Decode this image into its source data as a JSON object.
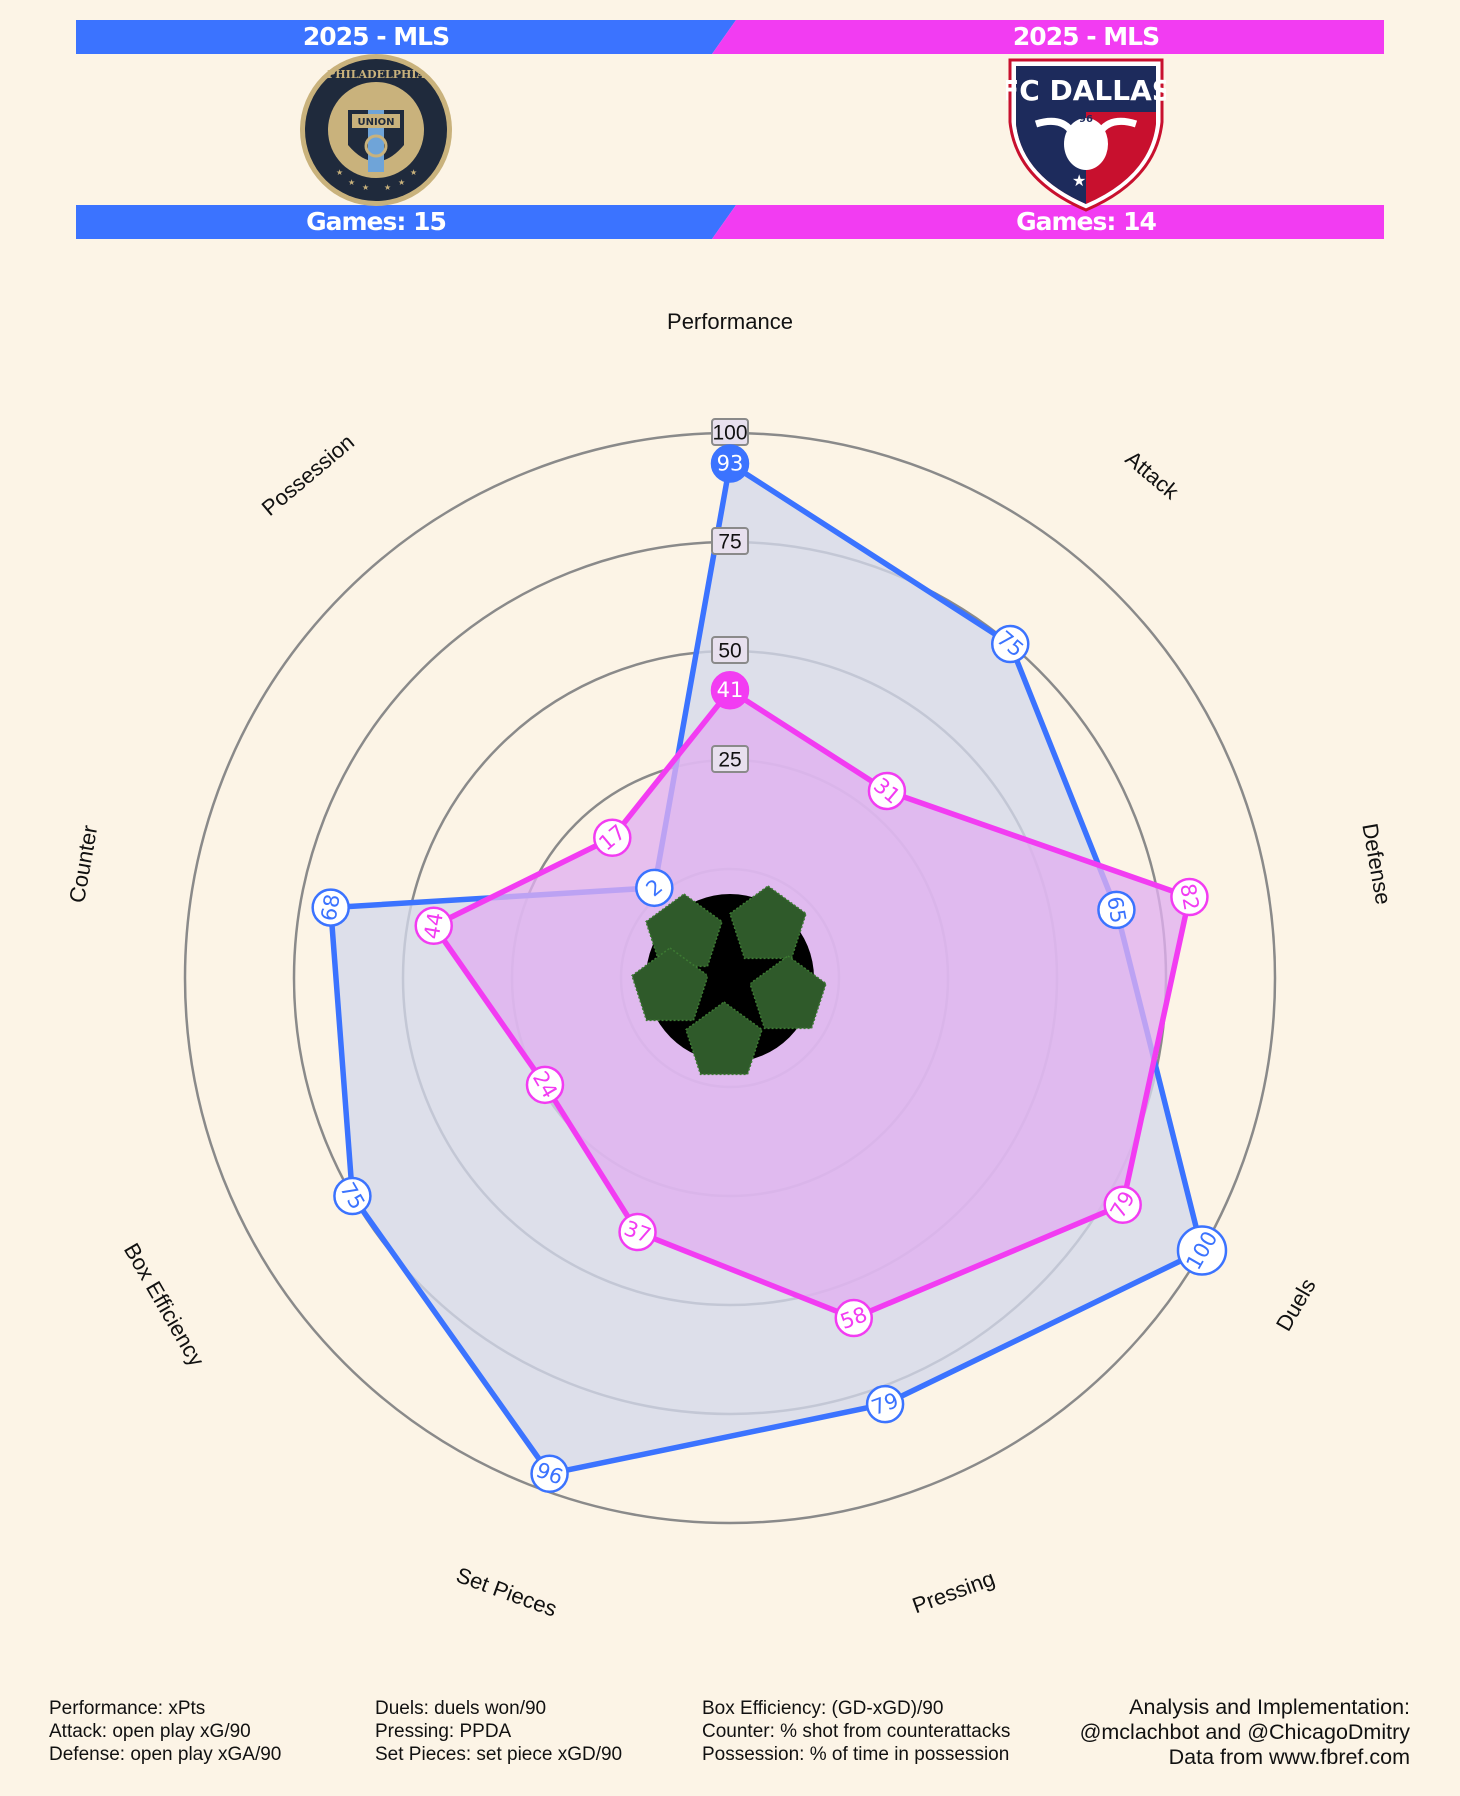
{
  "header": {
    "left": {
      "league": "2025 - MLS",
      "games": "Games: 15",
      "color": "#3b73ff",
      "logo_text_top": "PHILADELPHIA",
      "logo_text_mid": "UNION"
    },
    "right": {
      "league": "2025 - MLS",
      "games": "Games: 14",
      "color": "#f23cf2",
      "logo_text_top": "FC DALLAS",
      "logo_text_mid": "96"
    }
  },
  "chart_data": {
    "type": "radar",
    "axes": [
      "Performance",
      "Attack",
      "Defense",
      "Duels",
      "Pressing",
      "Set Pieces",
      "Box Efficiency",
      "Counter",
      "Possession"
    ],
    "rlim": [
      0,
      100
    ],
    "rings": [
      25,
      50,
      75,
      100
    ],
    "series": [
      {
        "name": "Philadelphia Union",
        "color": "#3b73ff",
        "fill": "#d4d9ea",
        "values": [
          93,
          75,
          65,
          100,
          79,
          96,
          75,
          68,
          2
        ]
      },
      {
        "name": "FC Dallas",
        "color": "#f23cf2",
        "fill": "#e0b0f0",
        "values": [
          41,
          31,
          82,
          79,
          58,
          37,
          24,
          44,
          17
        ]
      }
    ]
  },
  "footer": {
    "col1": [
      "Performance: xPts",
      "Attack: open play xG/90",
      "Defense: open play xGA/90"
    ],
    "col2": [
      "Duels: duels won/90",
      "Pressing: PPDA",
      "Set Pieces: set piece xGD/90"
    ],
    "col3": [
      "Box Efficiency: (GD-xGD)/90",
      "Counter: % shot from counterattacks",
      "Possession: % of time in possession"
    ],
    "credit": [
      "Analysis and Implementation:",
      "@mclachbot and @ChicagoDmitry",
      "Data from www.fbref.com"
    ]
  }
}
